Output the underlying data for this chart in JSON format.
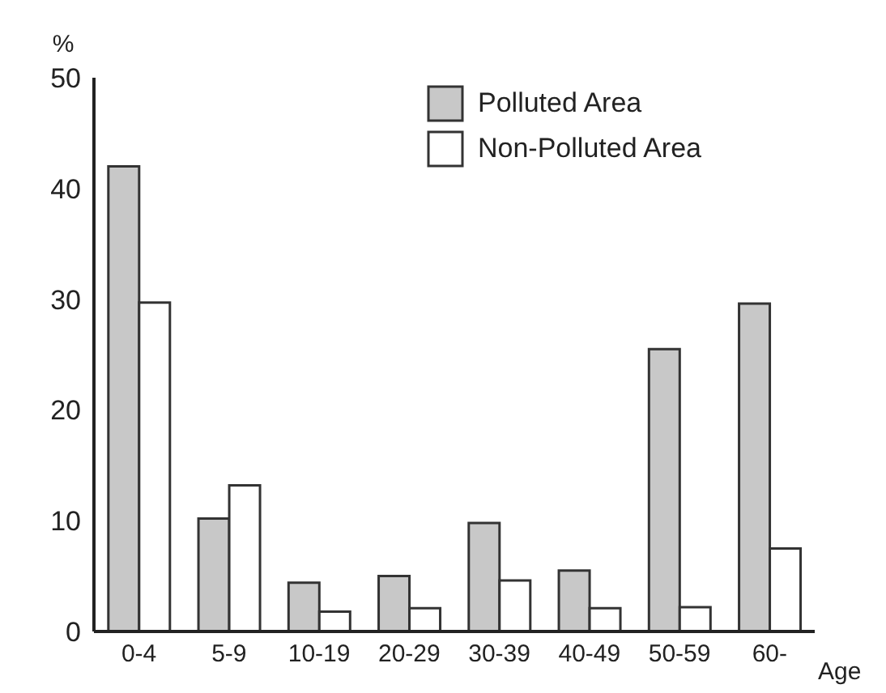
{
  "chart_data": {
    "type": "bar",
    "ylabel": "%",
    "xlabel": "Age",
    "categories": [
      "0-4",
      "5-9",
      "10-19",
      "20-29",
      "30-39",
      "40-49",
      "50-59",
      "60-"
    ],
    "series": [
      {
        "name": "Polluted Area",
        "color": "#c8c8c8",
        "values": [
          42,
          10.2,
          4.4,
          5.0,
          9.8,
          5.5,
          25.5,
          29.6
        ]
      },
      {
        "name": "Non-Polluted Area",
        "color": "#ffffff",
        "values": [
          29.7,
          13.2,
          1.8,
          2.1,
          4.6,
          2.1,
          2.2,
          7.5
        ]
      }
    ],
    "ylim": [
      0,
      50
    ],
    "yticks": [
      0,
      10,
      20,
      30,
      40,
      50
    ],
    "grid": false,
    "legend": "top right"
  }
}
